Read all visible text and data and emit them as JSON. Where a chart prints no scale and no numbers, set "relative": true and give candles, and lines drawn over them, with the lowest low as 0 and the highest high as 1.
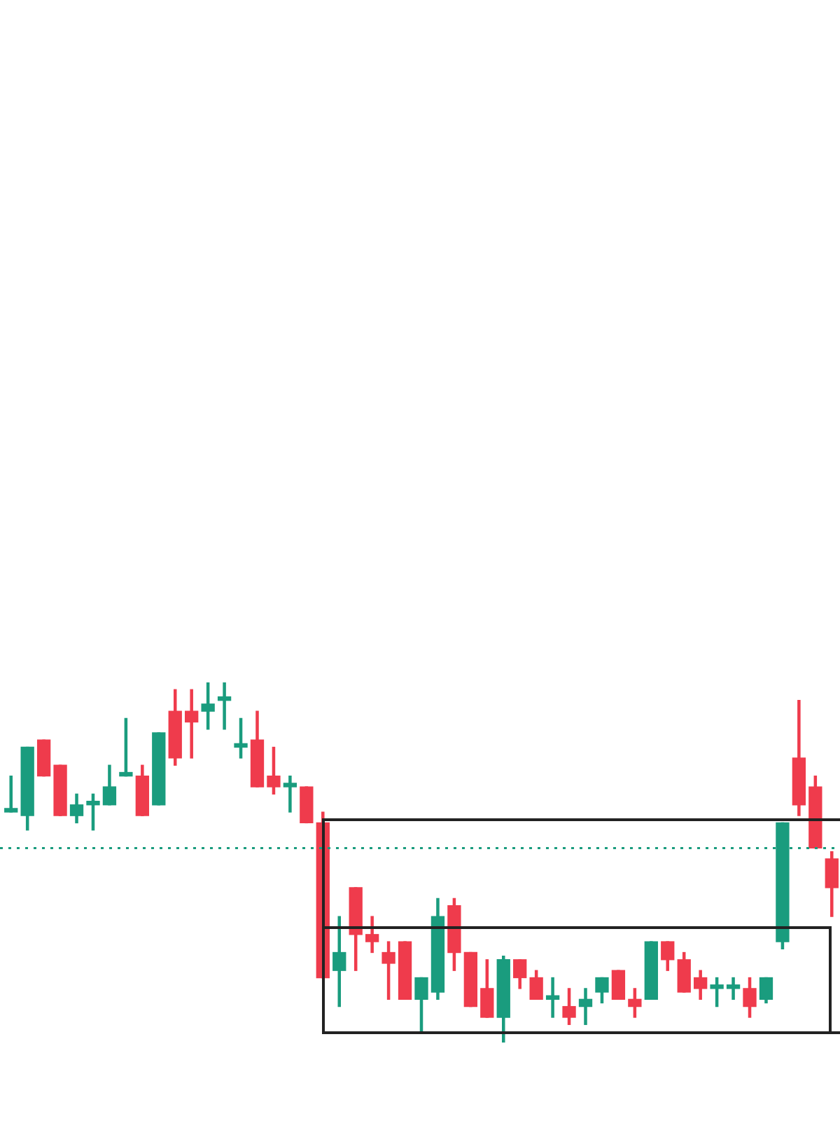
{
  "chart_data": {
    "type": "candlestick",
    "relative": true,
    "categories": [
      null,
      null,
      null,
      null,
      null,
      null,
      null,
      null,
      null,
      null,
      null,
      null,
      null,
      null,
      null,
      null,
      null,
      null,
      null,
      null,
      null,
      null,
      null,
      null,
      null,
      null,
      null,
      null,
      null,
      null,
      null,
      null,
      null,
      null,
      null,
      null,
      null,
      null,
      null,
      null,
      null,
      null,
      null,
      null,
      null,
      null,
      null,
      null,
      null,
      null,
      null
    ],
    "ohlc": [
      [
        0.64,
        0.74,
        0.64,
        0.65
      ],
      [
        0.63,
        0.82,
        0.59,
        0.82
      ],
      [
        0.84,
        0.84,
        0.74,
        0.74
      ],
      [
        0.77,
        0.77,
        0.63,
        0.63
      ],
      [
        0.63,
        0.69,
        0.61,
        0.66
      ],
      [
        0.66,
        0.69,
        0.59,
        0.67
      ],
      [
        0.66,
        0.77,
        0.66,
        0.71
      ],
      [
        0.74,
        0.9,
        0.74,
        0.75
      ],
      [
        0.74,
        0.77,
        0.63,
        0.63
      ],
      [
        0.66,
        0.86,
        0.66,
        0.86
      ],
      [
        0.92,
        0.98,
        0.77,
        0.79
      ],
      [
        0.92,
        0.98,
        0.79,
        0.89
      ],
      [
        0.92,
        1.0,
        0.87,
        0.94
      ],
      [
        0.95,
        1.0,
        0.87,
        0.96
      ],
      [
        0.82,
        0.9,
        0.79,
        0.83
      ],
      [
        0.84,
        0.92,
        0.71,
        0.71
      ],
      [
        0.74,
        0.82,
        0.69,
        0.71
      ],
      [
        0.71,
        0.74,
        0.64,
        0.72
      ],
      [
        0.71,
        0.71,
        0.61,
        0.61
      ],
      [
        0.61,
        0.64,
        0.18,
        0.18
      ],
      [
        0.2,
        0.35,
        0.1,
        0.25
      ],
      [
        0.43,
        0.43,
        0.2,
        0.3
      ],
      [
        0.3,
        0.35,
        0.25,
        0.28
      ],
      [
        0.25,
        0.28,
        0.12,
        0.22
      ],
      [
        0.28,
        0.28,
        0.12,
        0.12
      ],
      [
        0.12,
        0.18,
        0.03,
        0.18
      ],
      [
        0.14,
        0.4,
        0.12,
        0.35
      ],
      [
        0.38,
        0.4,
        0.2,
        0.25
      ],
      [
        0.25,
        0.25,
        0.1,
        0.1
      ],
      [
        0.15,
        0.23,
        0.07,
        0.07
      ],
      [
        0.07,
        0.24,
        0,
        0.23
      ],
      [
        0.23,
        0.23,
        0.15,
        0.18
      ],
      [
        0.18,
        0.2,
        0.12,
        0.12
      ],
      [
        0.12,
        0.18,
        0.07,
        0.13
      ],
      [
        0.1,
        0.15,
        0.05,
        0.07
      ],
      [
        0.1,
        0.15,
        0.05,
        0.12
      ],
      [
        0.14,
        0.18,
        0.11,
        0.18
      ],
      [
        0.2,
        0.2,
        0.12,
        0.12
      ],
      [
        0.12,
        0.15,
        0.07,
        0.1
      ],
      [
        0.12,
        0.28,
        0.12,
        0.28
      ],
      [
        0.28,
        0.28,
        0.2,
        0.23
      ],
      [
        0.23,
        0.25,
        0.14,
        0.14
      ],
      [
        0.18,
        0.2,
        0.12,
        0.15
      ],
      [
        0.15,
        0.18,
        0.1,
        0.16
      ],
      [
        0.15,
        0.18,
        0.12,
        0.16
      ],
      [
        0.15,
        0.18,
        0.07,
        0.1
      ],
      [
        0.12,
        0.18,
        0.11,
        0.18
      ],
      [
        0.28,
        0.61,
        0.26,
        0.61
      ],
      [
        0.79,
        0.95,
        0.63,
        0.66
      ],
      [
        0.71,
        0.74,
        0.54,
        0.54
      ],
      [
        0.51,
        0.53,
        0.35,
        0.43
      ]
    ],
    "colors": [
      "#1a9c7e",
      "#1a9c7e",
      "#ef3b4c",
      "#ef3b4c",
      "#1a9c7e",
      "#1a9c7e",
      "#1a9c7e",
      "#1a9c7e",
      "#ef3b4c",
      "#1a9c7e",
      "#ef3b4c",
      "#ef3b4c",
      "#1a9c7e",
      "#1a9c7e",
      "#1a9c7e",
      "#ef3b4c",
      "#ef3b4c",
      "#1a9c7e",
      "#ef3b4c",
      "#ef3b4c",
      "#1a9c7e",
      "#ef3b4c",
      "#ef3b4c",
      "#ef3b4c",
      "#ef3b4c",
      "#1a9c7e",
      "#1a9c7e",
      "#ef3b4c",
      "#ef3b4c",
      "#ef3b4c",
      "#1a9c7e",
      "#ef3b4c",
      "#ef3b4c",
      "#1a9c7e",
      "#ef3b4c",
      "#1a9c7e",
      "#1a9c7e",
      "#ef3b4c",
      "#ef3b4c",
      "#1a9c7e",
      "#ef3b4c",
      "#ef3b4c",
      "#ef3b4c",
      "#1a9c7e",
      "#1a9c7e",
      "#ef3b4c",
      "#1a9c7e",
      "#1a9c7e",
      "#ef3b4c",
      "#ef3b4c",
      "#ef3b4c"
    ],
    "ref_lines": [
      {
        "axis": "y",
        "value": 0.54,
        "color": "#1a9c7e",
        "line_style": "dotted"
      }
    ]
  }
}
